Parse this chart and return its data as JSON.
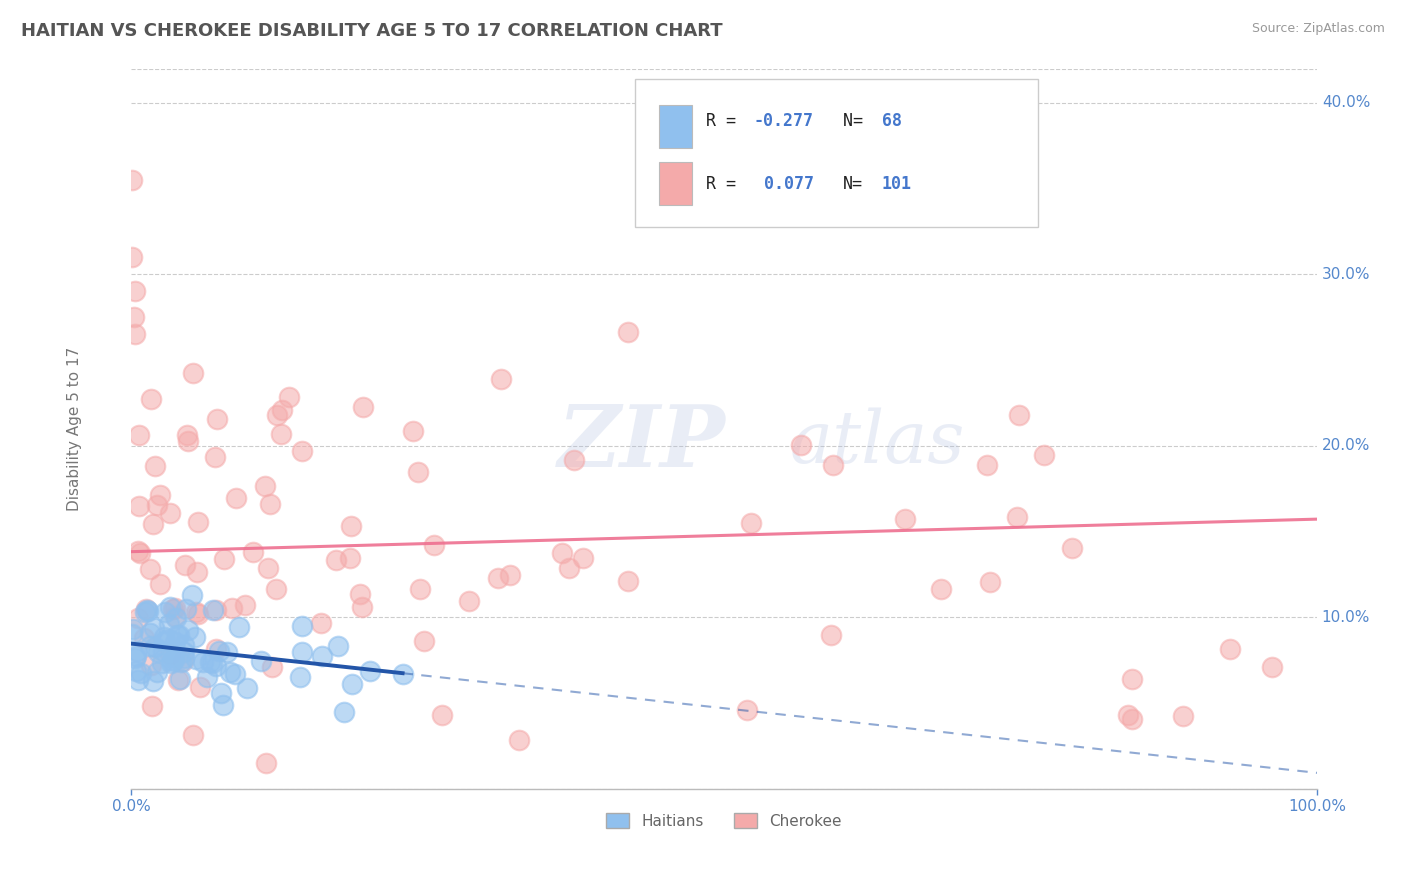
{
  "title": "HAITIAN VS CHEROKEE DISABILITY AGE 5 TO 17 CORRELATION CHART",
  "source": "Source: ZipAtlas.com",
  "ylabel": "Disability Age 5 to 17",
  "xlim": [
    0.0,
    1.0
  ],
  "ylim": [
    0.0,
    0.42
  ],
  "yticks": [
    0.0,
    0.1,
    0.2,
    0.3,
    0.4
  ],
  "ytick_labels": [
    "",
    "10.0%",
    "20.0%",
    "30.0%",
    "40.0%"
  ],
  "xtick_labels": [
    "0.0%",
    "100.0%"
  ],
  "haitian_color": "#90C0EE",
  "cherokee_color": "#F4AAAA",
  "haitian_line_color": "#2355A8",
  "cherokee_line_color": "#EE7090",
  "background_color": "#FFFFFF",
  "grid_color": "#CCCCCC",
  "title_color": "#555555",
  "axis_label_color": "#5588CC",
  "watermark_zip": "ZIP",
  "watermark_atlas": "atlas",
  "legend_text_color_rn": "#000000",
  "legend_text_color_val": "#4477CC"
}
